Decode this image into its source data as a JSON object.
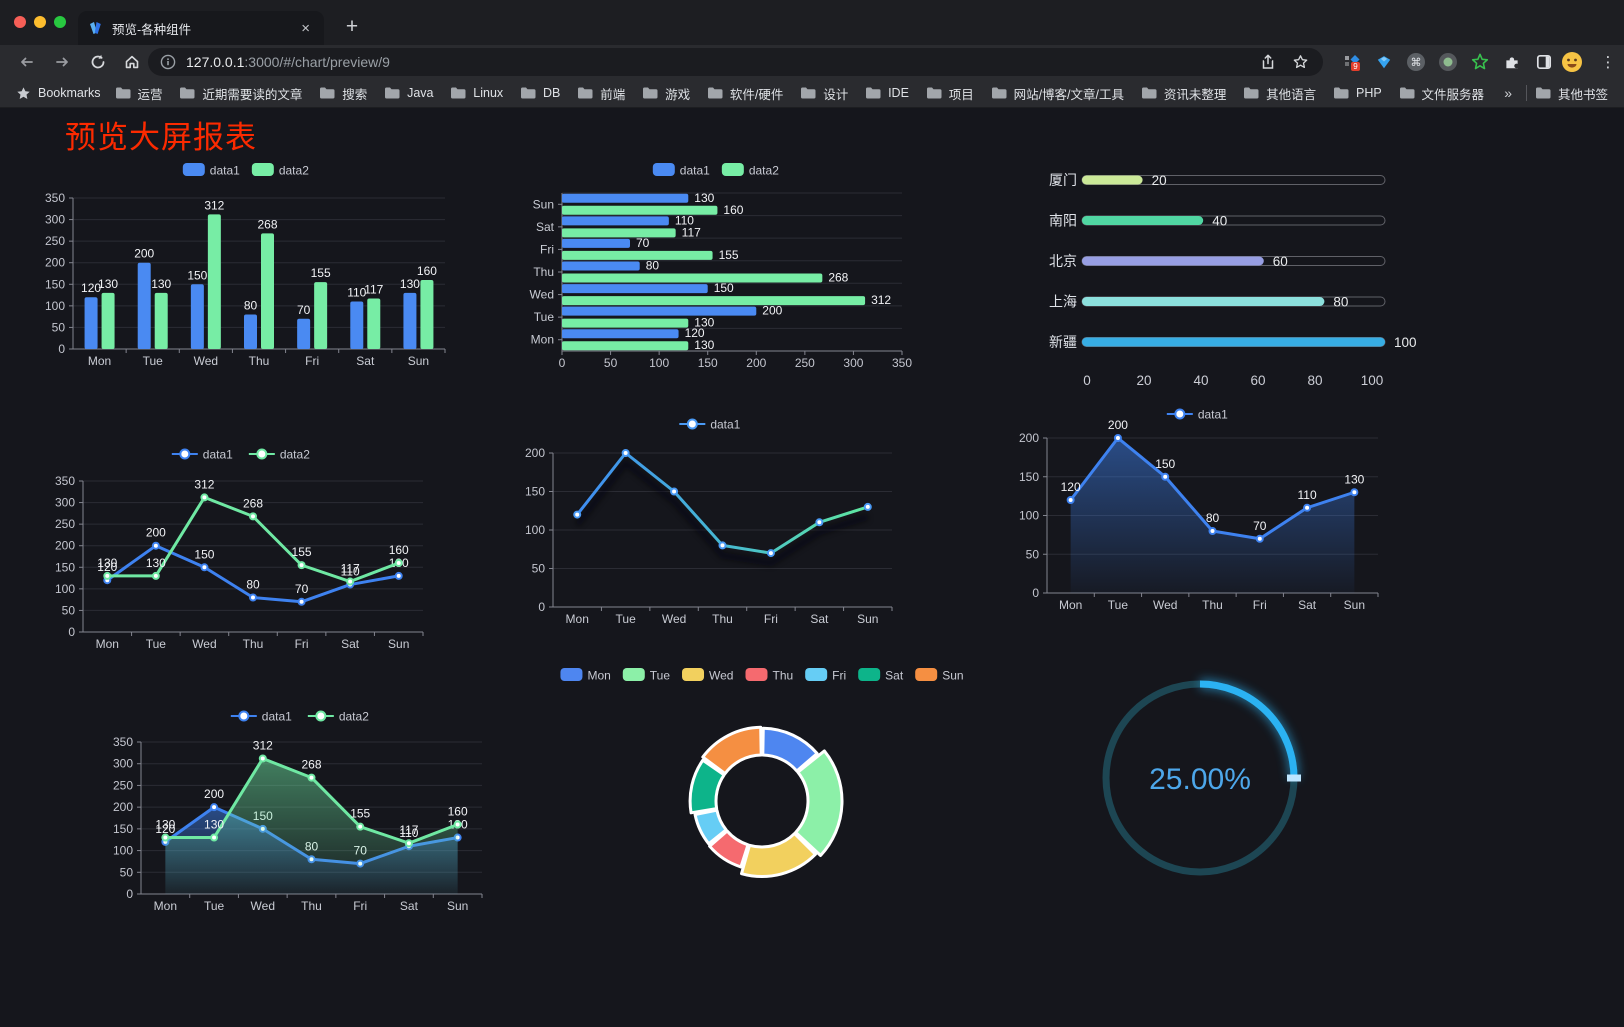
{
  "browser": {
    "tab": {
      "title": "预览-各种组件"
    },
    "glyphs": {
      "close": "×",
      "new_tab": "+",
      "menu": "⋮",
      "overflow": "»"
    },
    "url": {
      "host": "127.0.0.1",
      "rest": ":3000/#/chart/preview/9"
    },
    "extension_badge": "9",
    "bookmarks": {
      "star_label": "Bookmarks",
      "folders": [
        "运营",
        "近期需要读的文章",
        "搜索",
        "Java",
        "Linux",
        "DB",
        "前端",
        "游戏",
        "软件/硬件",
        "设计",
        "IDE",
        "项目",
        "网站/博客/文章/工具",
        "资讯未整理",
        "其他语言",
        "PHP",
        "文件服务器"
      ],
      "other_label": "其他书签"
    }
  },
  "page": {
    "title": "预览大屏报表",
    "title_color": "#fc2a00",
    "background": "#15161c"
  },
  "chart_data": [
    {
      "type": "bar",
      "categories": [
        "Mon",
        "Tue",
        "Wed",
        "Thu",
        "Fri",
        "Sat",
        "Sun"
      ],
      "series": [
        {
          "name": "data1",
          "color": "#4a8af2",
          "values": [
            120,
            200,
            150,
            80,
            70,
            110,
            130
          ]
        },
        {
          "name": "data2",
          "color": "#77eda5",
          "values": [
            130,
            130,
            312,
            268,
            155,
            117,
            160
          ]
        }
      ],
      "ylim": [
        0,
        350
      ],
      "ytick": 50,
      "value_labels": true,
      "legend_marker": "rect",
      "grid": true
    },
    {
      "type": "hbar",
      "categories": [
        "Mon",
        "Tue",
        "Wed",
        "Thu",
        "Fri",
        "Sat",
        "Sun"
      ],
      "series": [
        {
          "name": "data1",
          "color": "#4a8af2",
          "values": [
            120,
            200,
            150,
            80,
            70,
            110,
            130
          ]
        },
        {
          "name": "data2",
          "color": "#77eda5",
          "values": [
            130,
            130,
            312,
            268,
            155,
            117,
            160
          ]
        }
      ],
      "xlim": [
        0,
        350
      ],
      "xtick": 50,
      "value_labels": true,
      "legend_marker": "rect",
      "grid": true
    },
    {
      "type": "progress",
      "max": 100,
      "ticks": [
        0,
        20,
        40,
        60,
        80,
        100
      ],
      "items": [
        {
          "label": "厦门",
          "value": 20,
          "color": "#cbe998"
        },
        {
          "label": "南阳",
          "value": 40,
          "color": "#50d6a2"
        },
        {
          "label": "北京",
          "value": 60,
          "color": "#979ee3"
        },
        {
          "label": "上海",
          "value": 80,
          "color": "#8ce0dd"
        },
        {
          "label": "新疆",
          "value": 100,
          "color": "#37ade4"
        }
      ]
    },
    {
      "type": "line",
      "categories": [
        "Mon",
        "Tue",
        "Wed",
        "Thu",
        "Fri",
        "Sat",
        "Sun"
      ],
      "series": [
        {
          "name": "data1",
          "color": "#3e82f0",
          "values": [
            120,
            200,
            150,
            80,
            70,
            110,
            130
          ]
        },
        {
          "name": "data2",
          "color": "#6fe8a3",
          "values": [
            130,
            130,
            312,
            268,
            155,
            117,
            160
          ]
        }
      ],
      "ylim": [
        0,
        350
      ],
      "ytick": 50,
      "value_labels": true,
      "legend_marker": "line",
      "area": false
    },
    {
      "type": "line",
      "categories": [
        "Mon",
        "Tue",
        "Wed",
        "Thu",
        "Fri",
        "Sat",
        "Sun"
      ],
      "series": [
        {
          "name": "data1",
          "color": "#4a9af5",
          "values": [
            120,
            200,
            150,
            80,
            70,
            110,
            130
          ]
        }
      ],
      "gradient_stroke": [
        "#3f8cf2",
        "#46b8d2",
        "#5fe8a0"
      ],
      "shadow": true,
      "ylim": [
        0,
        200
      ],
      "ytick": 50,
      "value_labels": false,
      "legend_marker": "line",
      "area": false
    },
    {
      "type": "line",
      "categories": [
        "Mon",
        "Tue",
        "Wed",
        "Thu",
        "Fri",
        "Sat",
        "Sun"
      ],
      "series": [
        {
          "name": "data1",
          "color": "#3e82f0",
          "values": [
            120,
            200,
            150,
            80,
            70,
            110,
            130
          ]
        }
      ],
      "ylim": [
        0,
        200
      ],
      "ytick": 50,
      "value_labels": true,
      "legend_marker": "line",
      "area": true
    },
    {
      "type": "line",
      "categories": [
        "Mon",
        "Tue",
        "Wed",
        "Thu",
        "Fri",
        "Sat",
        "Sun"
      ],
      "series": [
        {
          "name": "data1",
          "color": "#3e82f0",
          "values": [
            120,
            200,
            150,
            80,
            70,
            110,
            130
          ]
        },
        {
          "name": "data2",
          "color": "#6fe8a3",
          "values": [
            130,
            130,
            312,
            268,
            155,
            117,
            160
          ]
        }
      ],
      "ylim": [
        0,
        350
      ],
      "ytick": 50,
      "value_labels": true,
      "legend_marker": "line",
      "area": true
    },
    {
      "type": "donut",
      "slices": [
        {
          "label": "Mon",
          "value": 120,
          "color": "#4e86f0"
        },
        {
          "label": "Tue",
          "value": 200,
          "color": "#8cf0a8"
        },
        {
          "label": "Wed",
          "value": 150,
          "color": "#f2d05e"
        },
        {
          "label": "Thu",
          "value": 80,
          "color": "#f56a6f"
        },
        {
          "label": "Fri",
          "value": 70,
          "color": "#66cdf5"
        },
        {
          "label": "Sat",
          "value": 110,
          "color": "#0db48a"
        },
        {
          "label": "Sun",
          "value": 130,
          "color": "#f58f42"
        }
      ]
    },
    {
      "type": "gauge",
      "value": 25,
      "label": "25.00%",
      "color": "#2bb2f2",
      "track_color": "#1d4653",
      "text_color": "#4da7ea"
    }
  ]
}
